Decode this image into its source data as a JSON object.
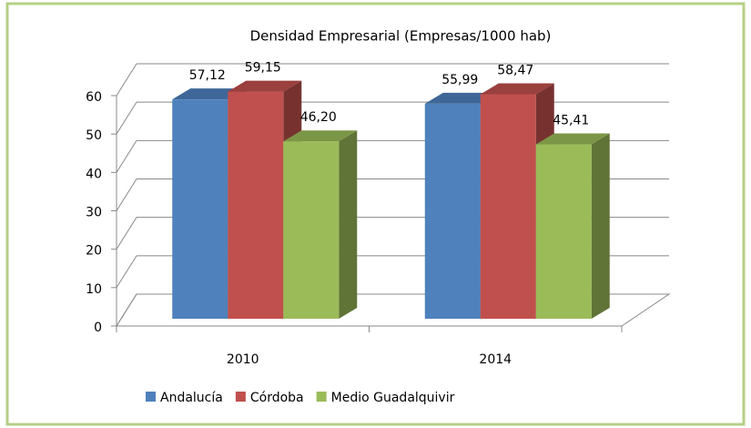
{
  "chart_data": {
    "type": "bar3d",
    "title": "Densidad Empresarial (Empresas/1000 hab)",
    "categories": [
      "2010",
      "2014"
    ],
    "series": [
      {
        "name": "Andalucía",
        "color": "#4f81bd",
        "values": [
          57.12,
          55.99
        ],
        "value_labels": [
          "57,12",
          "55,99"
        ]
      },
      {
        "name": "Córdoba",
        "color": "#c0504d",
        "values": [
          59.15,
          58.47
        ],
        "value_labels": [
          "59,15",
          "58,47"
        ]
      },
      {
        "name": "Medio Guadalquivir",
        "color": "#9bbb59",
        "values": [
          46.2,
          45.41
        ],
        "value_labels": [
          "46,20",
          "45,41"
        ]
      }
    ],
    "ylim": [
      0,
      60
    ],
    "yticks": [
      0,
      10,
      20,
      30,
      40,
      50,
      60
    ],
    "grid": true,
    "legend": "bottom"
  }
}
